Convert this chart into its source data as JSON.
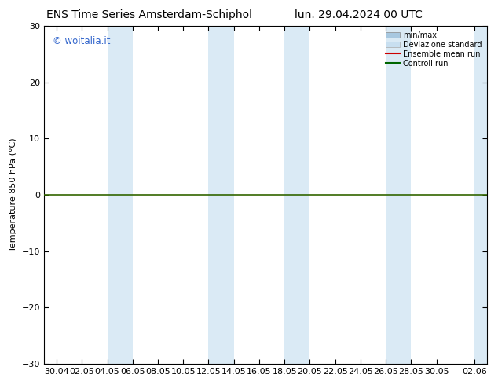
{
  "title_left": "ENS Time Series Amsterdam-Schiphol",
  "title_right": "lun. 29.04.2024 00 UTC",
  "ylabel": "Temperature 850 hPa (°C)",
  "ylim": [
    -30,
    30
  ],
  "yticks": [
    -30,
    -20,
    -10,
    0,
    10,
    20,
    30
  ],
  "x_labels": [
    "30.04",
    "02.05",
    "04.05",
    "06.05",
    "08.05",
    "10.05",
    "12.05",
    "14.05",
    "16.05",
    "18.05",
    "20.05",
    "22.05",
    "24.05",
    "26.05",
    "28.05",
    "30.05",
    "02.06"
  ],
  "watermark": "© woitalia.it",
  "legend_entries": [
    "min/max",
    "Deviazione standard",
    "Ensemble mean run",
    "Controll run"
  ],
  "minmax_color": "#a8c8e0",
  "dev_std_color": "#c8dff0",
  "ensemble_color": "#cc0000",
  "control_color": "#006600",
  "band_color": "#daeaf5",
  "bg_color": "#ffffff",
  "zero_line_color": "#336600",
  "title_fontsize": 10,
  "axis_fontsize": 8,
  "tick_fontsize": 8,
  "watermark_color": "#3366cc"
}
